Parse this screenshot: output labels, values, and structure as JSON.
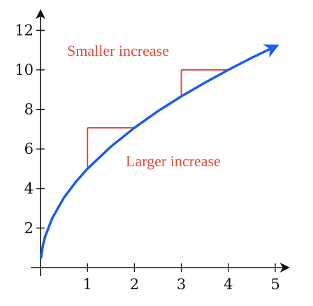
{
  "chart_data": {
    "type": "line",
    "title": "",
    "xlabel": "",
    "ylabel": "",
    "xlim": [
      0,
      5.2
    ],
    "ylim": [
      0,
      12.8
    ],
    "x_ticks": [
      "1",
      "2",
      "3",
      "4",
      "5"
    ],
    "y_ticks": [
      "2",
      "4",
      "6",
      "8",
      "10",
      "12"
    ],
    "grid": false,
    "legend": "none",
    "series": [
      {
        "function": "y = 5 * x^0.5",
        "x": [
          0.01,
          0.05,
          0.1,
          0.25,
          0.5,
          0.75,
          1,
          1.5,
          2,
          2.5,
          3,
          3.5,
          4,
          4.5,
          5
        ],
        "y": [
          0.5,
          1.12,
          1.58,
          2.5,
          3.54,
          4.33,
          5.0,
          6.12,
          7.07,
          7.91,
          8.66,
          9.35,
          10.0,
          10.61,
          11.18
        ],
        "color": "#1a5cf0",
        "arrow_end": true
      }
    ],
    "step_guides": [
      {
        "x_from": 1,
        "x_to": 2,
        "y_from": 5.0,
        "y_to": 7.07,
        "color": "#e04a3a"
      },
      {
        "x_from": 3,
        "x_to": 4,
        "y_from": 8.66,
        "y_to": 10.0,
        "color": "#e04a3a"
      }
    ],
    "annotations": [
      {
        "text": "Smaller increase",
        "color": "#e04a3a"
      },
      {
        "text": "Larger increase",
        "color": "#e04a3a"
      }
    ]
  }
}
